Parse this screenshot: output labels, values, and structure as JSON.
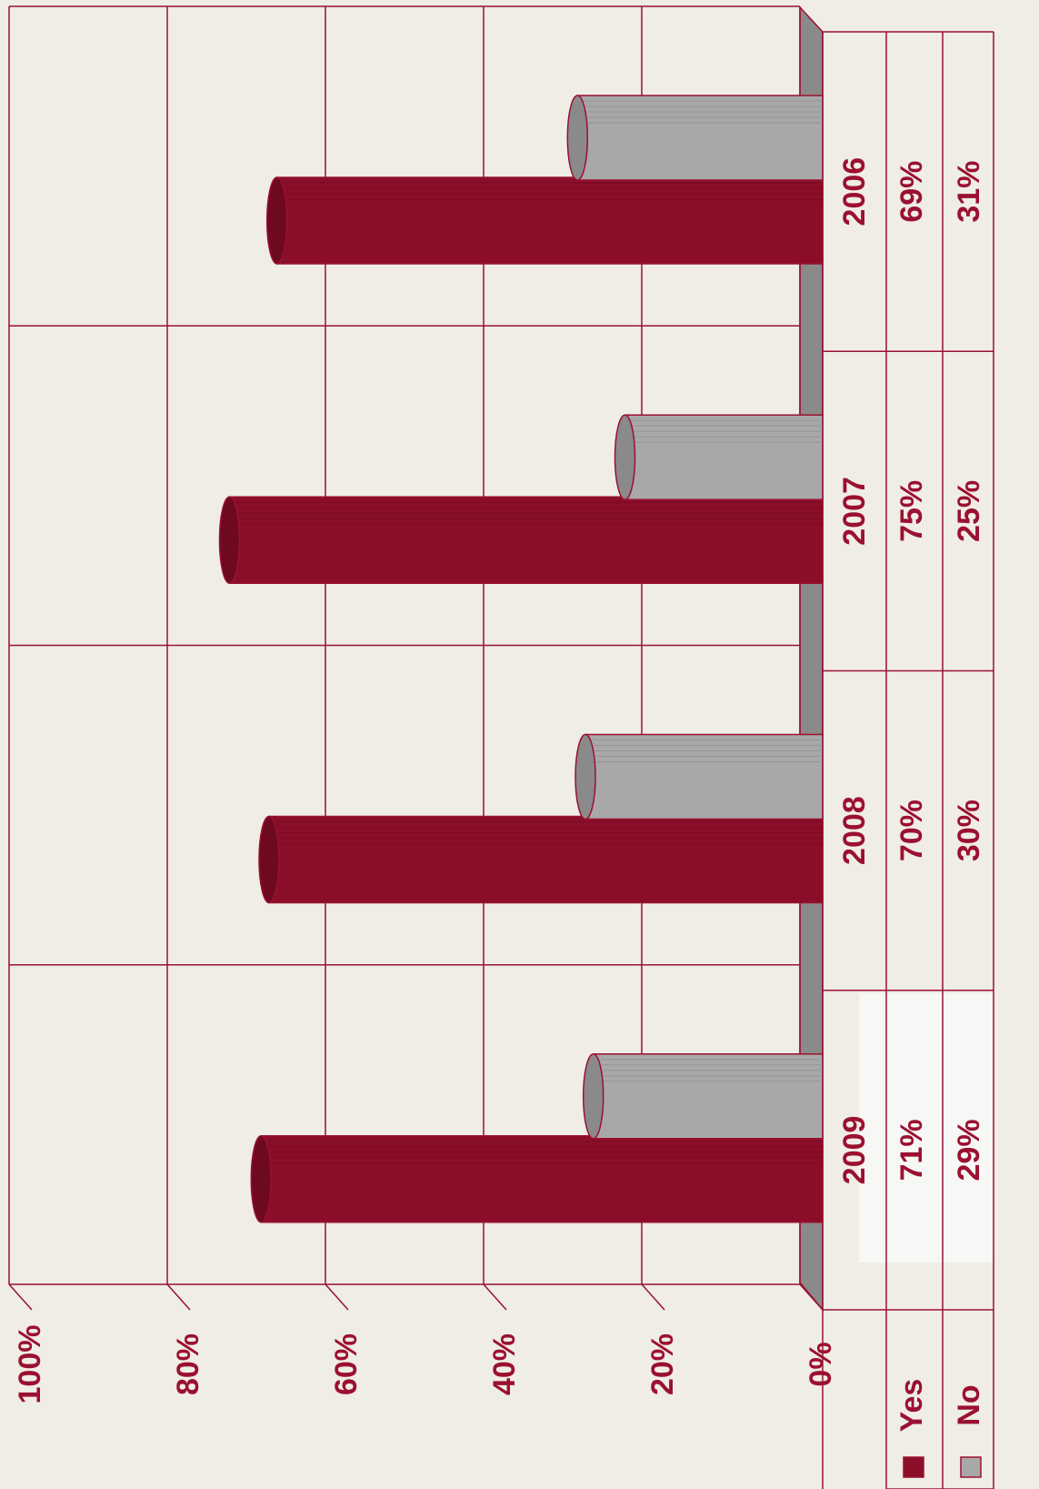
{
  "chart_data": {
    "type": "bar",
    "categories": [
      "2009",
      "2008",
      "2007",
      "2006"
    ],
    "series": [
      {
        "name": "Yes",
        "color": "#8b0e28",
        "values": [
          71,
          70,
          75,
          69
        ],
        "value_labels": [
          "71%",
          "70%",
          "75%",
          "69%"
        ]
      },
      {
        "name": "No",
        "color": "#a8a8a8",
        "values": [
          29,
          30,
          25,
          31
        ],
        "value_labels": [
          "29%",
          "30%",
          "25%",
          "31%"
        ]
      }
    ],
    "ylim": [
      0,
      100
    ],
    "yticks": [
      {
        "value": 0,
        "label": "0%"
      },
      {
        "value": 20,
        "label": "20%"
      },
      {
        "value": 40,
        "label": "40%"
      },
      {
        "value": 60,
        "label": "60%"
      },
      {
        "value": 80,
        "label": "80%"
      },
      {
        "value": 100,
        "label": "100%"
      }
    ],
    "grid": true
  }
}
